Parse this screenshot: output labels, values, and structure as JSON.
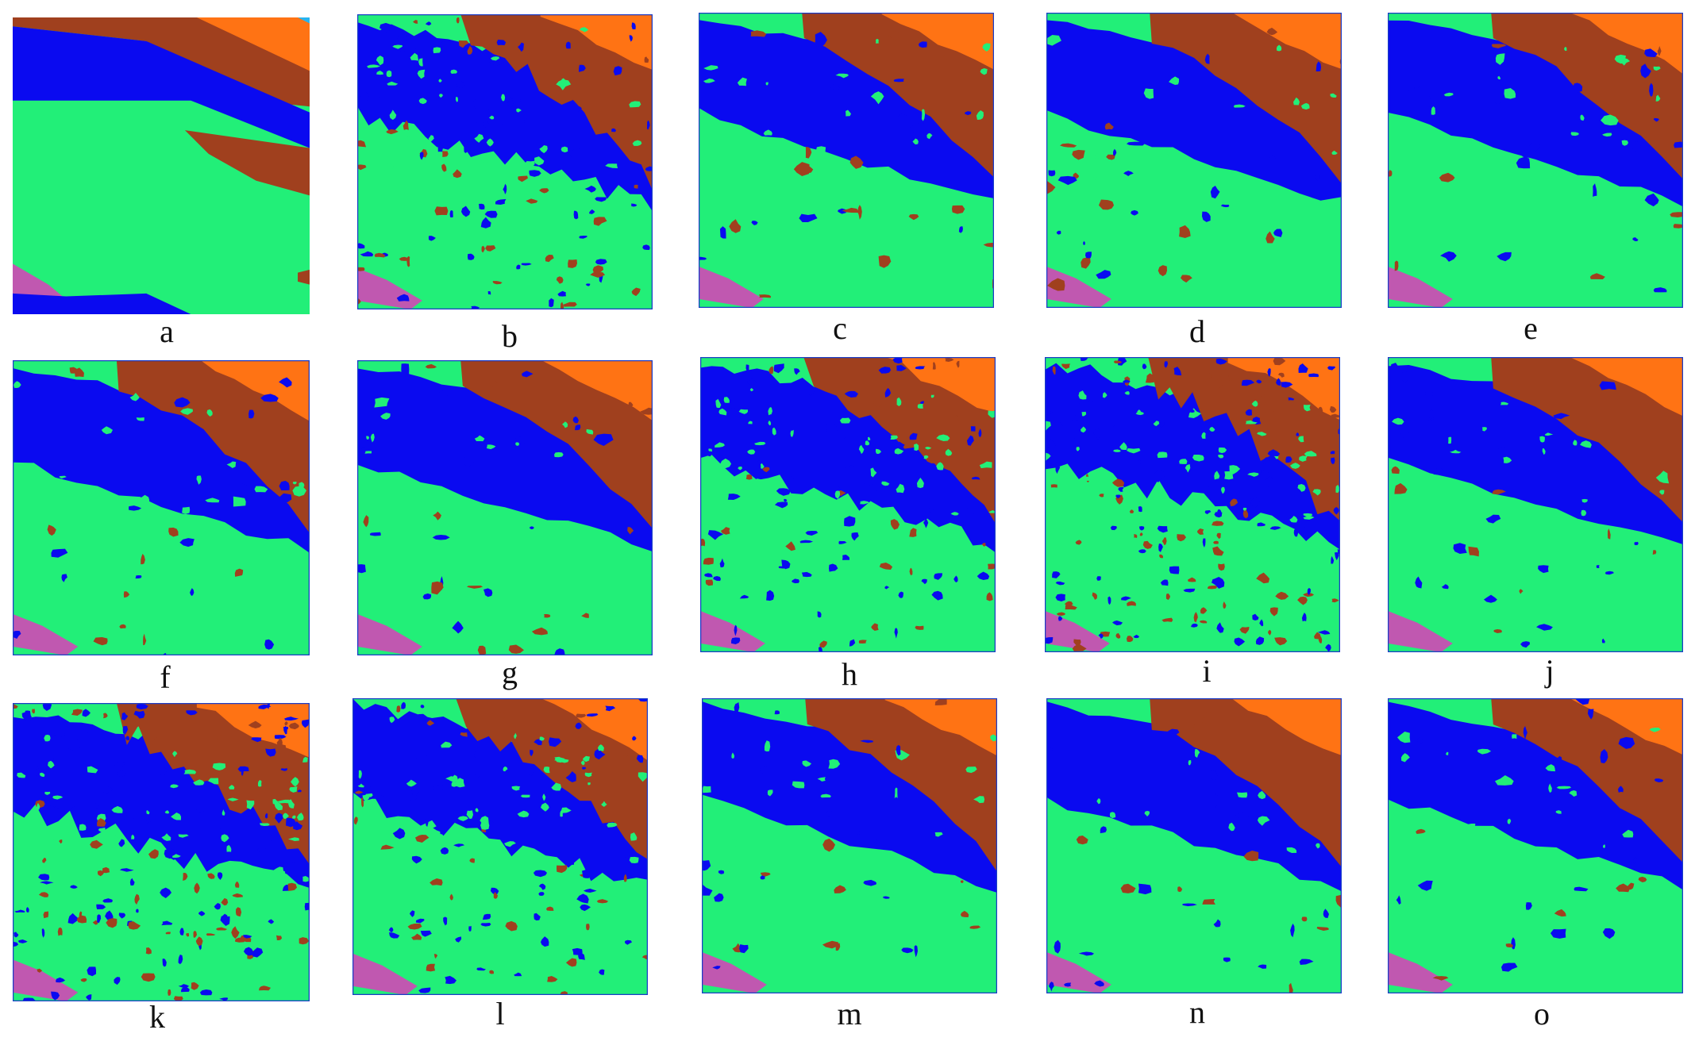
{
  "colors": {
    "background": "#ffffff",
    "green": "#22ef78",
    "blue": "#0a0af0",
    "brown": "#a0401e",
    "orange": "#ff7314",
    "magenta": "#c058b0",
    "cyan": "#28b4f0",
    "frame": "#1a3cc8"
  },
  "panels": [
    {
      "label": "a",
      "kind": "ground-truth"
    },
    {
      "label": "b",
      "kind": "noisy"
    },
    {
      "label": "c",
      "kind": "smooth"
    },
    {
      "label": "d",
      "kind": "smooth"
    },
    {
      "label": "e",
      "kind": "smooth"
    },
    {
      "label": "f",
      "kind": "smooth"
    },
    {
      "label": "g",
      "kind": "smooth"
    },
    {
      "label": "h",
      "kind": "noisy"
    },
    {
      "label": "i",
      "kind": "very-noisy"
    },
    {
      "label": "j",
      "kind": "smooth"
    },
    {
      "label": "k",
      "kind": "very-noisy"
    },
    {
      "label": "l",
      "kind": "noisy"
    },
    {
      "label": "m",
      "kind": "smooth"
    },
    {
      "label": "n",
      "kind": "smooth"
    },
    {
      "label": "o",
      "kind": "smooth"
    }
  ]
}
